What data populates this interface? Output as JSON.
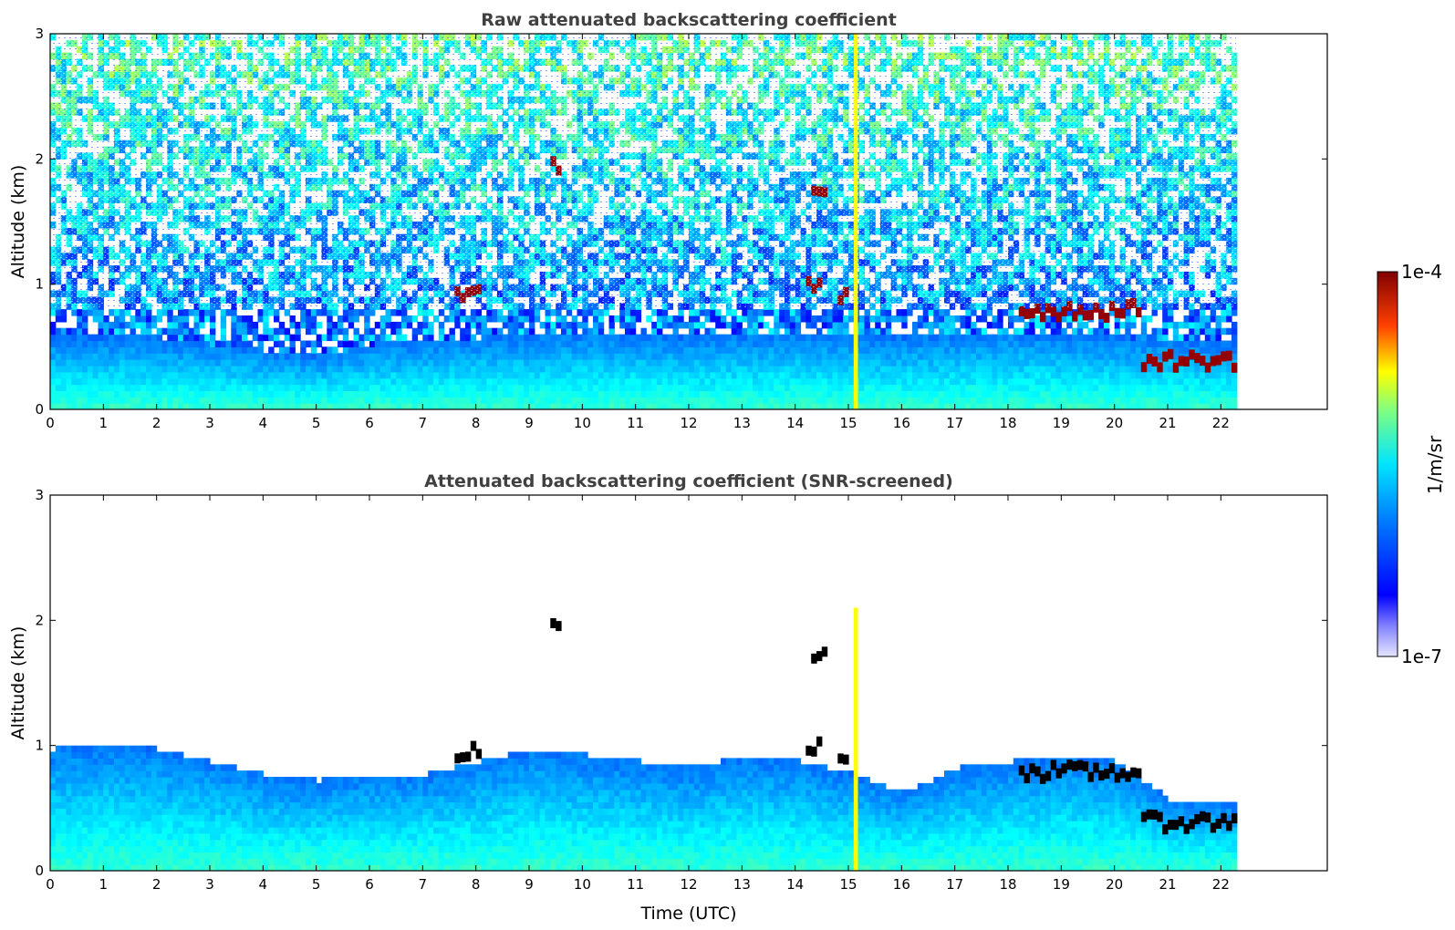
{
  "chart_data": [
    {
      "type": "heatmap",
      "title": "Raw attenuated backscattering coefficient",
      "xlabel": "",
      "ylabel": "Altitude (km)",
      "xlim": [
        0,
        24
      ],
      "ylim": [
        0,
        3
      ],
      "x_ticks": [
        "0",
        "1",
        "2",
        "3",
        "4",
        "5",
        "6",
        "7",
        "8",
        "9",
        "10",
        "11",
        "12",
        "13",
        "14",
        "15",
        "16",
        "17",
        "18",
        "19",
        "20",
        "21",
        "22"
      ],
      "y_ticks": [
        "0",
        "1",
        "2",
        "3"
      ],
      "data_end_time": 22.3,
      "mixed_layer_top_km": [
        [
          0,
          0.55
        ],
        [
          2,
          0.55
        ],
        [
          4,
          0.45
        ],
        [
          5,
          0.4
        ],
        [
          6,
          0.5
        ],
        [
          8,
          0.55
        ],
        [
          10,
          0.6
        ],
        [
          12,
          0.55
        ],
        [
          14,
          0.6
        ],
        [
          16,
          0.55
        ],
        [
          18,
          0.6
        ],
        [
          22.3,
          0.5
        ]
      ],
      "clouds": [
        {
          "t0": 18.2,
          "t1": 20.5,
          "alt_km": 0.75,
          "level": "1e-4"
        },
        {
          "t0": 20.5,
          "t1": 22.3,
          "alt_km": 0.35,
          "level": "1e-4"
        },
        {
          "t0": 14.3,
          "t1": 14.6,
          "alt_km": 1.7,
          "level": "1e-4"
        },
        {
          "t0": 14.2,
          "t1": 14.4,
          "alt_km": 0.95,
          "level": "1e-4"
        },
        {
          "t0": 14.8,
          "t1": 15.0,
          "alt_km": 0.85,
          "level": "1e-4"
        },
        {
          "t0": 9.4,
          "t1": 9.6,
          "alt_km": 1.9,
          "level": "1e-4"
        },
        {
          "t0": 7.6,
          "t1": 8.0,
          "alt_km": 0.9,
          "level": "1e-4"
        }
      ],
      "precip_column_time": 15.1
    },
    {
      "type": "heatmap",
      "title": "Attenuated backscattering coefficient (SNR-screened)",
      "xlabel": "Time (UTC)",
      "ylabel": "Altitude (km)",
      "xlim": [
        0,
        24
      ],
      "ylim": [
        0,
        3
      ],
      "x_ticks": [
        "0",
        "1",
        "2",
        "3",
        "4",
        "5",
        "6",
        "7",
        "8",
        "9",
        "10",
        "11",
        "12",
        "13",
        "14",
        "15",
        "16",
        "17",
        "18",
        "19",
        "20",
        "21",
        "22"
      ],
      "y_ticks": [
        "0",
        "1",
        "2",
        "3"
      ],
      "data_end_time": 22.3,
      "screened_top_km": [
        [
          0,
          0.95
        ],
        [
          1,
          1.0
        ],
        [
          2,
          0.95
        ],
        [
          3,
          0.85
        ],
        [
          4,
          0.75
        ],
        [
          5,
          0.7
        ],
        [
          6,
          0.75
        ],
        [
          7,
          0.75
        ],
        [
          8,
          0.85
        ],
        [
          9,
          0.95
        ],
        [
          10,
          0.9
        ],
        [
          11,
          0.85
        ],
        [
          12,
          0.8
        ],
        [
          13,
          0.9
        ],
        [
          14,
          0.85
        ],
        [
          15,
          0.75
        ],
        [
          16,
          0.6
        ],
        [
          17,
          0.8
        ],
        [
          18,
          0.85
        ],
        [
          19,
          0.9
        ],
        [
          20,
          0.85
        ],
        [
          21,
          0.55
        ],
        [
          22.3,
          0.5
        ]
      ],
      "saturated_cloud_color": "#000000"
    }
  ],
  "colorbar": {
    "max_label": "1e-4",
    "min_label": "1e-7",
    "unit_label": "1/m/sr",
    "colormap": "jet"
  },
  "colors": {
    "low": "#0000ff",
    "mid": "#00bfff",
    "high": "#ffff00",
    "max": "#8b0000",
    "axis": "#000000",
    "title": "#404040"
  }
}
